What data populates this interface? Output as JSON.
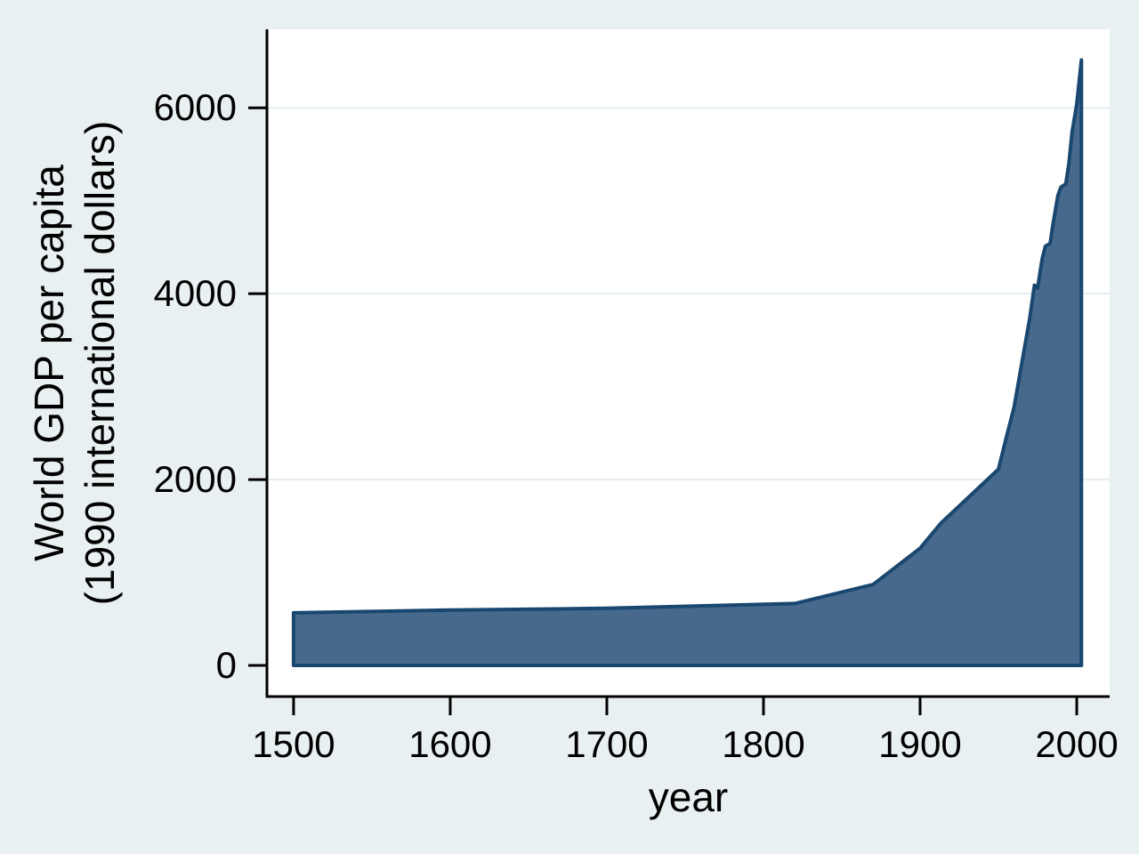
{
  "colors": {
    "page_background": "#e9f0f2",
    "plot_background": "#ffffff",
    "gridline": "#e3edf0",
    "axis_line": "#000000",
    "tick_text": "#000000",
    "area_fill": "#46698c",
    "area_stroke": "#1a476f"
  },
  "chart_data": {
    "type": "area",
    "title": "",
    "xlabel": "year",
    "ylabel": "World GDP per capita (1990 international dollars)",
    "ylabel_lines": [
      "World GDP per capita",
      "(1990 international dollars)"
    ],
    "x_ticks": [
      1500,
      1600,
      1700,
      1800,
      1900,
      2000
    ],
    "x_tick_labels": [
      "1500",
      "1600",
      "1700",
      "1800",
      "1900",
      "2000"
    ],
    "y_ticks": [
      0,
      2000,
      4000,
      6000
    ],
    "y_tick_labels": [
      "0",
      "2000",
      "4000",
      "6000"
    ],
    "xlim": [
      1483,
      2021
    ],
    "ylim": [
      -335,
      6845
    ],
    "grid": "horizontal gridlines at y ticks, plot area only",
    "legend": "none",
    "series": [
      {
        "name": "World GDP per capita (1990 international dollars)",
        "x": [
          1500,
          1600,
          1700,
          1820,
          1870,
          1900,
          1913,
          1950,
          1951,
          1955,
          1960,
          1965,
          1970,
          1973,
          1975,
          1978,
          1980,
          1983,
          1985,
          1988,
          1990,
          1993,
          1995,
          1997,
          2000,
          2003
        ],
        "y": [
          566,
          596,
          615,
          666,
          870,
          1261,
          1526,
          2111,
          2180,
          2450,
          2777,
          3259,
          3736,
          4091,
          4060,
          4380,
          4512,
          4540,
          4764,
          5060,
          5149,
          5180,
          5400,
          5740,
          6038,
          6516
        ],
        "baseline": 0
      }
    ]
  }
}
